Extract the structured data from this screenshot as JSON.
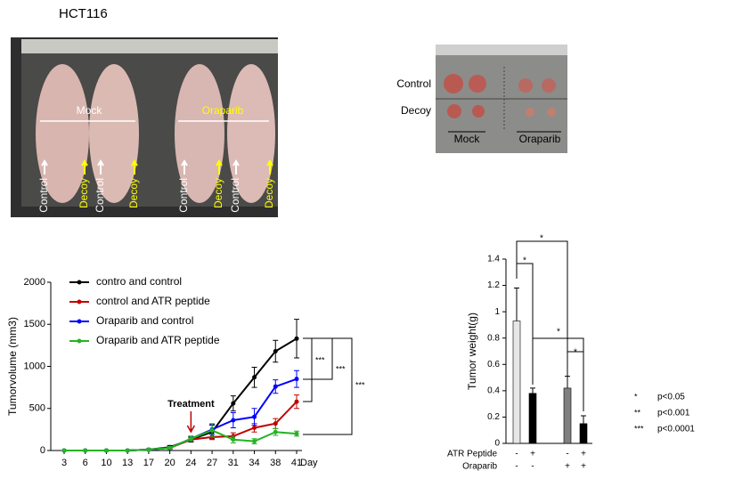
{
  "title": "HCT116",
  "photo_left": {
    "group_labels": [
      "Mock",
      "Oraparib"
    ],
    "arrow_labels": [
      "Control",
      "Decoy",
      "Control",
      "Decoy",
      "Control",
      "Decoy",
      "Control",
      "Decoy"
    ]
  },
  "photo_right": {
    "row_labels": [
      "Control",
      "Decoy"
    ],
    "column_labels": [
      "Mock",
      "Oraparib"
    ]
  },
  "chart_data": [
    {
      "type": "line",
      "ylabel": "Tumorvolume (mm3)",
      "xlabel": "Day",
      "categories": [
        "3",
        "6",
        "10",
        "13",
        "17",
        "20",
        "24",
        "27",
        "31",
        "34",
        "38",
        "41"
      ],
      "ylim": [
        0,
        2000
      ],
      "yticks": [
        0,
        500,
        1000,
        1500,
        2000
      ],
      "series": [
        {
          "name": "contro and control",
          "color": "#000000",
          "values": [
            0,
            0,
            0,
            0,
            10,
            40,
            130,
            220,
            560,
            870,
            1180,
            1330
          ],
          "errors": [
            0,
            0,
            0,
            0,
            10,
            20,
            30,
            80,
            90,
            120,
            130,
            230
          ]
        },
        {
          "name": "control and ATR peptide",
          "color": "#c00000",
          "values": [
            0,
            0,
            0,
            0,
            10,
            30,
            130,
            160,
            170,
            270,
            320,
            580
          ],
          "errors": [
            0,
            0,
            0,
            0,
            5,
            10,
            20,
            30,
            40,
            50,
            60,
            80
          ]
        },
        {
          "name": "Oraparib and control",
          "color": "#0000ff",
          "values": [
            0,
            0,
            0,
            0,
            10,
            30,
            140,
            250,
            360,
            400,
            760,
            850
          ],
          "errors": [
            0,
            0,
            0,
            0,
            5,
            15,
            30,
            60,
            90,
            100,
            80,
            100
          ]
        },
        {
          "name": "Oraparib and ATR peptide",
          "color": "#22b422",
          "values": [
            0,
            0,
            0,
            0,
            10,
            30,
            140,
            240,
            130,
            110,
            220,
            200
          ],
          "errors": [
            0,
            0,
            0,
            0,
            5,
            15,
            30,
            80,
            40,
            30,
            40,
            30
          ]
        }
      ],
      "annotations": [
        "Treatment",
        "***",
        "***",
        "***"
      ]
    },
    {
      "type": "bar",
      "ylabel": "Tumor weight(g)",
      "ylim": [
        0,
        1.4
      ],
      "yticks": [
        0,
        0.2,
        0.4,
        0.6,
        0.8,
        1,
        1.2,
        1.4
      ],
      "values": [
        0.93,
        0.38,
        0.42,
        0.15
      ],
      "errors": [
        0.25,
        0.04,
        0.09,
        0.06
      ],
      "colors": [
        "#e6e6e6",
        "#000000",
        "#808080",
        "#000000"
      ],
      "row_labels": [
        "ATR Peptide",
        "Oraparib"
      ],
      "rows": [
        [
          "-",
          "+",
          "-",
          "+"
        ],
        [
          "-",
          "-",
          "+",
          "+"
        ]
      ],
      "annotations": [
        "*",
        "*",
        "*",
        "*"
      ],
      "significance_key": [
        [
          "*",
          "p<0.05"
        ],
        [
          "**",
          "p<0.001"
        ],
        [
          "***",
          "p<0.0001"
        ]
      ]
    }
  ]
}
